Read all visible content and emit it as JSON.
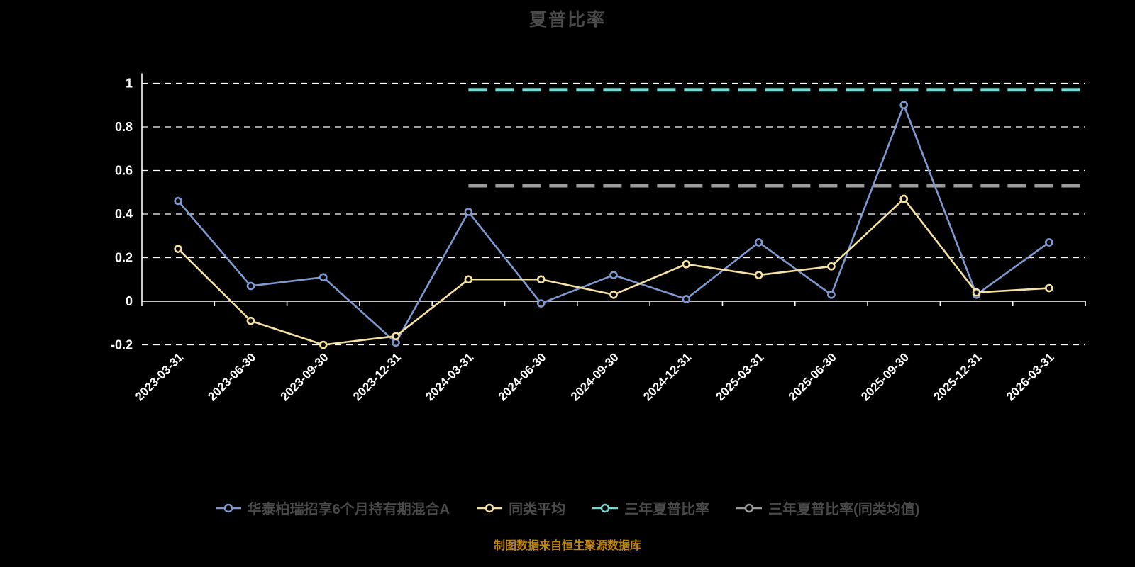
{
  "colors": {
    "background": "#000000",
    "grid_axis": "#ffffff",
    "heading_text": "#4a4a4a",
    "footer_text": "#bf8608"
  },
  "chart_data": {
    "type": "line",
    "title": "夏普比率",
    "footer": "制图数据来自恒生聚源数据库",
    "legend_position": "bottom",
    "grid": "horizontal-dashed-white",
    "categories": [
      "2023-03-31",
      "2023-06-30",
      "2023-09-30",
      "2023-12-31",
      "2024-03-31",
      "2024-06-30",
      "2024-09-30",
      "2024-12-31",
      "2025-03-31",
      "2025-06-30",
      "2025-09-30",
      "2025-12-31",
      "2026-03-31"
    ],
    "x_axis": {
      "label_rotation_deg": 45,
      "axis_line_at_zero": true
    },
    "y_axis": {
      "min": -0.2,
      "max": 1.0,
      "ticks": [
        {
          "label": "1",
          "value": 1
        },
        {
          "label": "0.8",
          "value": 0.8
        },
        {
          "label": "0.6",
          "value": 0.6
        },
        {
          "label": "0.4",
          "value": 0.4
        },
        {
          "label": "0.2",
          "value": 0.2
        },
        {
          "label": "0",
          "value": 0
        },
        {
          "label": "-0.2",
          "value": -0.2
        }
      ]
    },
    "series": [
      {
        "name": "华泰柏瑞招享6个月持有期混合A",
        "type": "line",
        "color": "#7e99d0",
        "values": [
          0.46,
          0.07,
          0.11,
          -0.19,
          0.41,
          -0.01,
          0.12,
          0.01,
          0.27,
          0.03,
          0.9,
          0.03,
          0.27
        ]
      },
      {
        "name": "同类平均",
        "type": "line",
        "color": "#f6e0a2",
        "values": [
          0.24,
          -0.09,
          -0.2,
          -0.16,
          0.1,
          0.1,
          0.03,
          0.17,
          0.12,
          0.16,
          0.47,
          0.04,
          0.06
        ]
      },
      {
        "name": "三年夏普比率",
        "type": "reference-line",
        "style": "dashed",
        "color": "#7ad8d0",
        "value": 0.97,
        "start_category": "2024-03-31"
      },
      {
        "name": "三年夏普比率(同类均值)",
        "type": "reference-line",
        "style": "dashed",
        "color": "#9b9b9b",
        "value": 0.53,
        "start_category": "2024-03-31"
      }
    ]
  }
}
